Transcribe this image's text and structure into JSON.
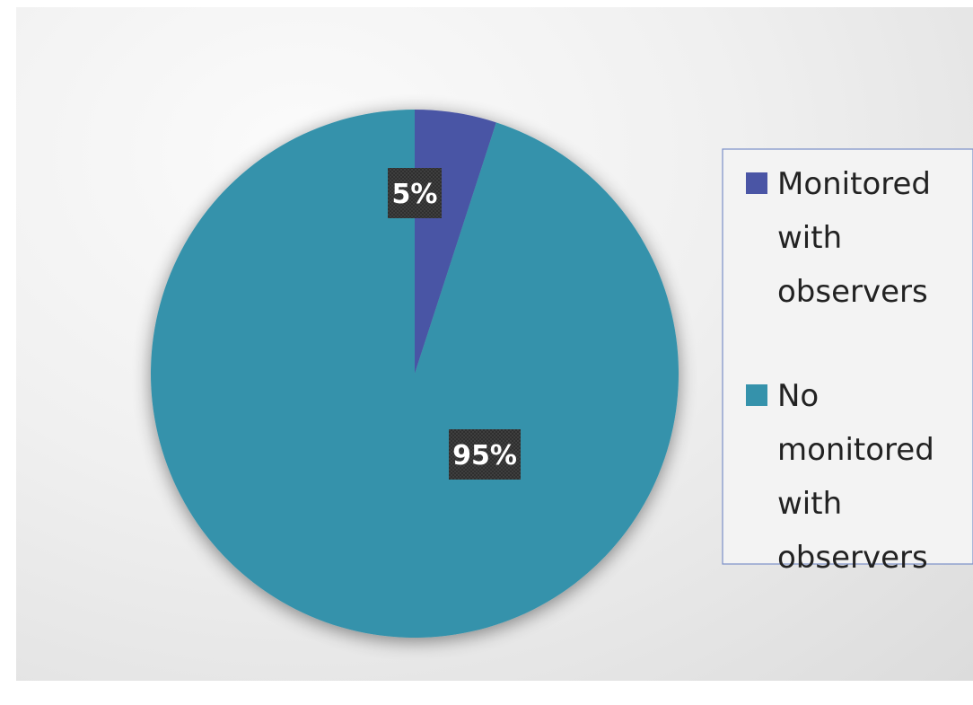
{
  "chart_data": {
    "type": "pie",
    "slices": [
      {
        "label": "Monitored with observers",
        "value": 5,
        "color": "#4a55a5",
        "display": "5%"
      },
      {
        "label": "No monitored with observers",
        "value": 95,
        "color": "#3592ab",
        "display": "95%"
      }
    ],
    "start_angle": "12 o'clock, clockwise",
    "legend": {
      "placement": "right",
      "entries": [
        {
          "lines": [
            "Monitored",
            "with",
            "observers"
          ]
        },
        {
          "lines": [
            "No",
            "monitored",
            "with",
            "observers"
          ]
        }
      ]
    },
    "title": ""
  }
}
